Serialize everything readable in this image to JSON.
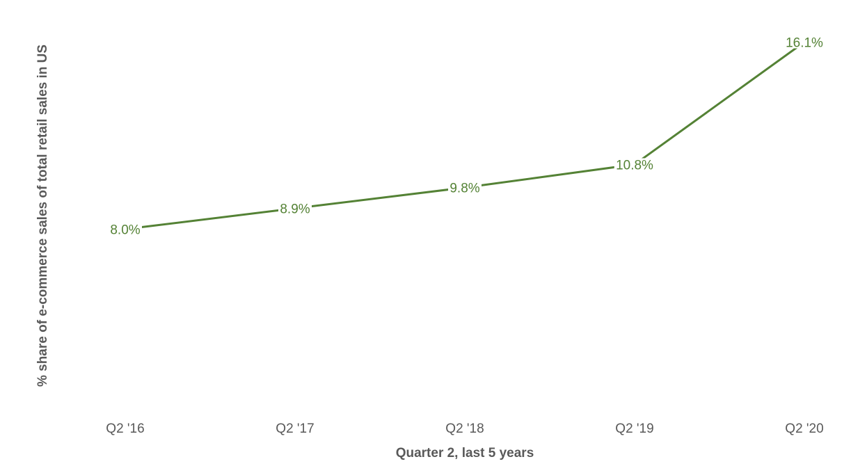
{
  "chart_data": {
    "type": "line",
    "title": "",
    "xlabel": "Quarter 2, last 5 years",
    "ylabel": "% share of e-commerce sales of total retail sales in US",
    "categories": [
      "Q2 '16",
      "Q2 '17",
      "Q2 '18",
      "Q2 '19",
      "Q2 '20"
    ],
    "series": [
      {
        "values": [
          8.0,
          8.9,
          9.8,
          10.8,
          16.1
        ],
        "labels": [
          "8.0%",
          "8.9%",
          "9.8%",
          "10.8%",
          "16.1%"
        ],
        "color": "#548235"
      }
    ],
    "ylim": [
      0,
      18
    ],
    "grid": false,
    "legend": "none"
  }
}
